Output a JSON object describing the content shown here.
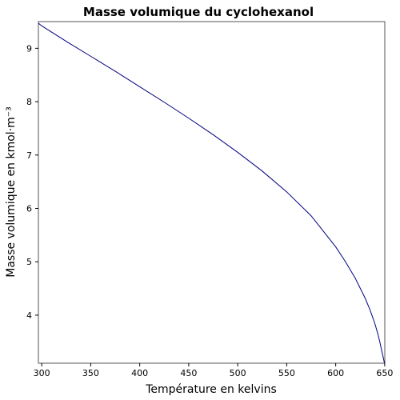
{
  "chart_data": {
    "type": "line",
    "title": "Masse volumique du cyclohexanol",
    "xlabel": "Température en kelvins",
    "ylabel": "Masse volumique en kmol·m⁻³",
    "xlim": [
      296.6,
      650.1
    ],
    "ylim": [
      3.1,
      9.5
    ],
    "x_ticks": [
      300,
      350,
      400,
      450,
      500,
      550,
      600,
      650
    ],
    "y_ticks": [
      4,
      5,
      6,
      7,
      8,
      9
    ],
    "x_tick_labels": [
      "300",
      "350",
      "400",
      "450",
      "500",
      "550",
      "600",
      "650"
    ],
    "y_tick_labels": [
      "4",
      "5",
      "6",
      "7",
      "8",
      "9"
    ],
    "grid": false,
    "line_color": "#000080",
    "series": [
      {
        "x": [
          296.6,
          300,
          325,
          350,
          375,
          400,
          425,
          450,
          475,
          500,
          525,
          550,
          575,
          600,
          610,
          620,
          630,
          635,
          640,
          643,
          645,
          647,
          648.5,
          649.5,
          650,
          650.1
        ],
        "y": [
          9.47,
          9.42,
          9.13,
          8.85,
          8.57,
          8.28,
          7.99,
          7.69,
          7.38,
          7.05,
          6.7,
          6.31,
          5.86,
          5.28,
          5.0,
          4.69,
          4.32,
          4.1,
          3.84,
          3.65,
          3.5,
          3.33,
          3.21,
          3.12,
          3.1,
          3.1
        ]
      }
    ]
  }
}
